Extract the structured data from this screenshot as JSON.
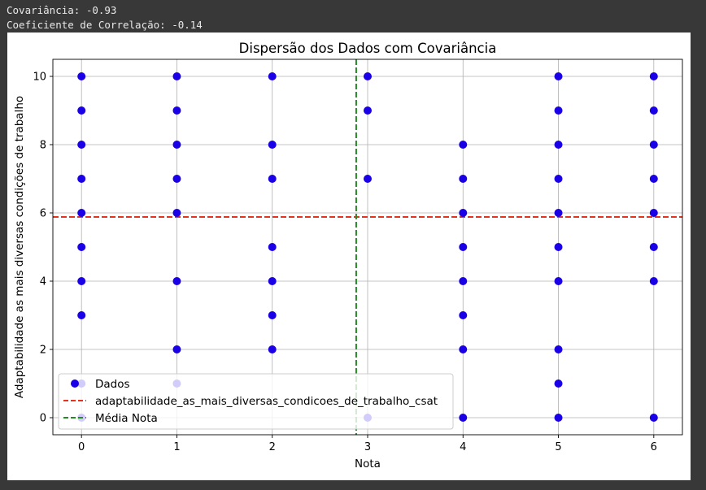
{
  "console": {
    "covariance_text": "Covariância: -0.93",
    "correlation_text": "Coeficiente de Correlação: -0.14"
  },
  "colors": {
    "background": "#383838",
    "points": "#1a00e6",
    "mean_y_line": "#e8321e",
    "mean_x_line": "#228b22",
    "grid": "#b0b0b0"
  },
  "chart_data": {
    "type": "scatter",
    "title": "Dispersão dos Dados com Covariância",
    "xlabel": "Nota",
    "ylabel": "Adaptabilidade as mais diversas condições de trabalho",
    "xlim": [
      -0.3,
      6.3
    ],
    "ylim": [
      -0.5,
      10.5
    ],
    "xticks": [
      0,
      1,
      2,
      3,
      4,
      5,
      6
    ],
    "yticks": [
      0,
      2,
      4,
      6,
      8,
      10
    ],
    "grid": true,
    "legend_position": "lower-left",
    "series": [
      {
        "name": "Dados",
        "marker": "circle",
        "color": "#1a00e6",
        "points": [
          [
            0,
            0
          ],
          [
            0,
            1
          ],
          [
            0,
            3
          ],
          [
            0,
            4
          ],
          [
            0,
            5
          ],
          [
            0,
            6
          ],
          [
            0,
            7
          ],
          [
            0,
            8
          ],
          [
            0,
            9
          ],
          [
            0,
            10
          ],
          [
            1,
            1
          ],
          [
            1,
            2
          ],
          [
            1,
            4
          ],
          [
            1,
            6
          ],
          [
            1,
            7
          ],
          [
            1,
            8
          ],
          [
            1,
            9
          ],
          [
            1,
            10
          ],
          [
            2,
            2
          ],
          [
            2,
            3
          ],
          [
            2,
            4
          ],
          [
            2,
            5
          ],
          [
            2,
            7
          ],
          [
            2,
            8
          ],
          [
            2,
            10
          ],
          [
            3,
            0
          ],
          [
            3,
            7
          ],
          [
            3,
            9
          ],
          [
            3,
            10
          ],
          [
            4,
            0
          ],
          [
            4,
            2
          ],
          [
            4,
            3
          ],
          [
            4,
            4
          ],
          [
            4,
            5
          ],
          [
            4,
            6
          ],
          [
            4,
            7
          ],
          [
            4,
            8
          ],
          [
            5,
            0
          ],
          [
            5,
            1
          ],
          [
            5,
            2
          ],
          [
            5,
            4
          ],
          [
            5,
            5
          ],
          [
            5,
            6
          ],
          [
            5,
            7
          ],
          [
            5,
            8
          ],
          [
            5,
            9
          ],
          [
            5,
            10
          ],
          [
            6,
            0
          ],
          [
            6,
            4
          ],
          [
            6,
            5
          ],
          [
            6,
            6
          ],
          [
            6,
            7
          ],
          [
            6,
            8
          ],
          [
            6,
            9
          ],
          [
            6,
            10
          ]
        ]
      }
    ],
    "lines": [
      {
        "name": "adaptabilidade_as_mais_diversas_condicoes_de_trabalho_csat",
        "orientation": "horizontal",
        "value": 5.88,
        "style": "dashed",
        "color": "#e8321e"
      },
      {
        "name": "Média Nota",
        "orientation": "vertical",
        "value": 2.88,
        "style": "dashed",
        "color": "#228b22"
      }
    ]
  }
}
